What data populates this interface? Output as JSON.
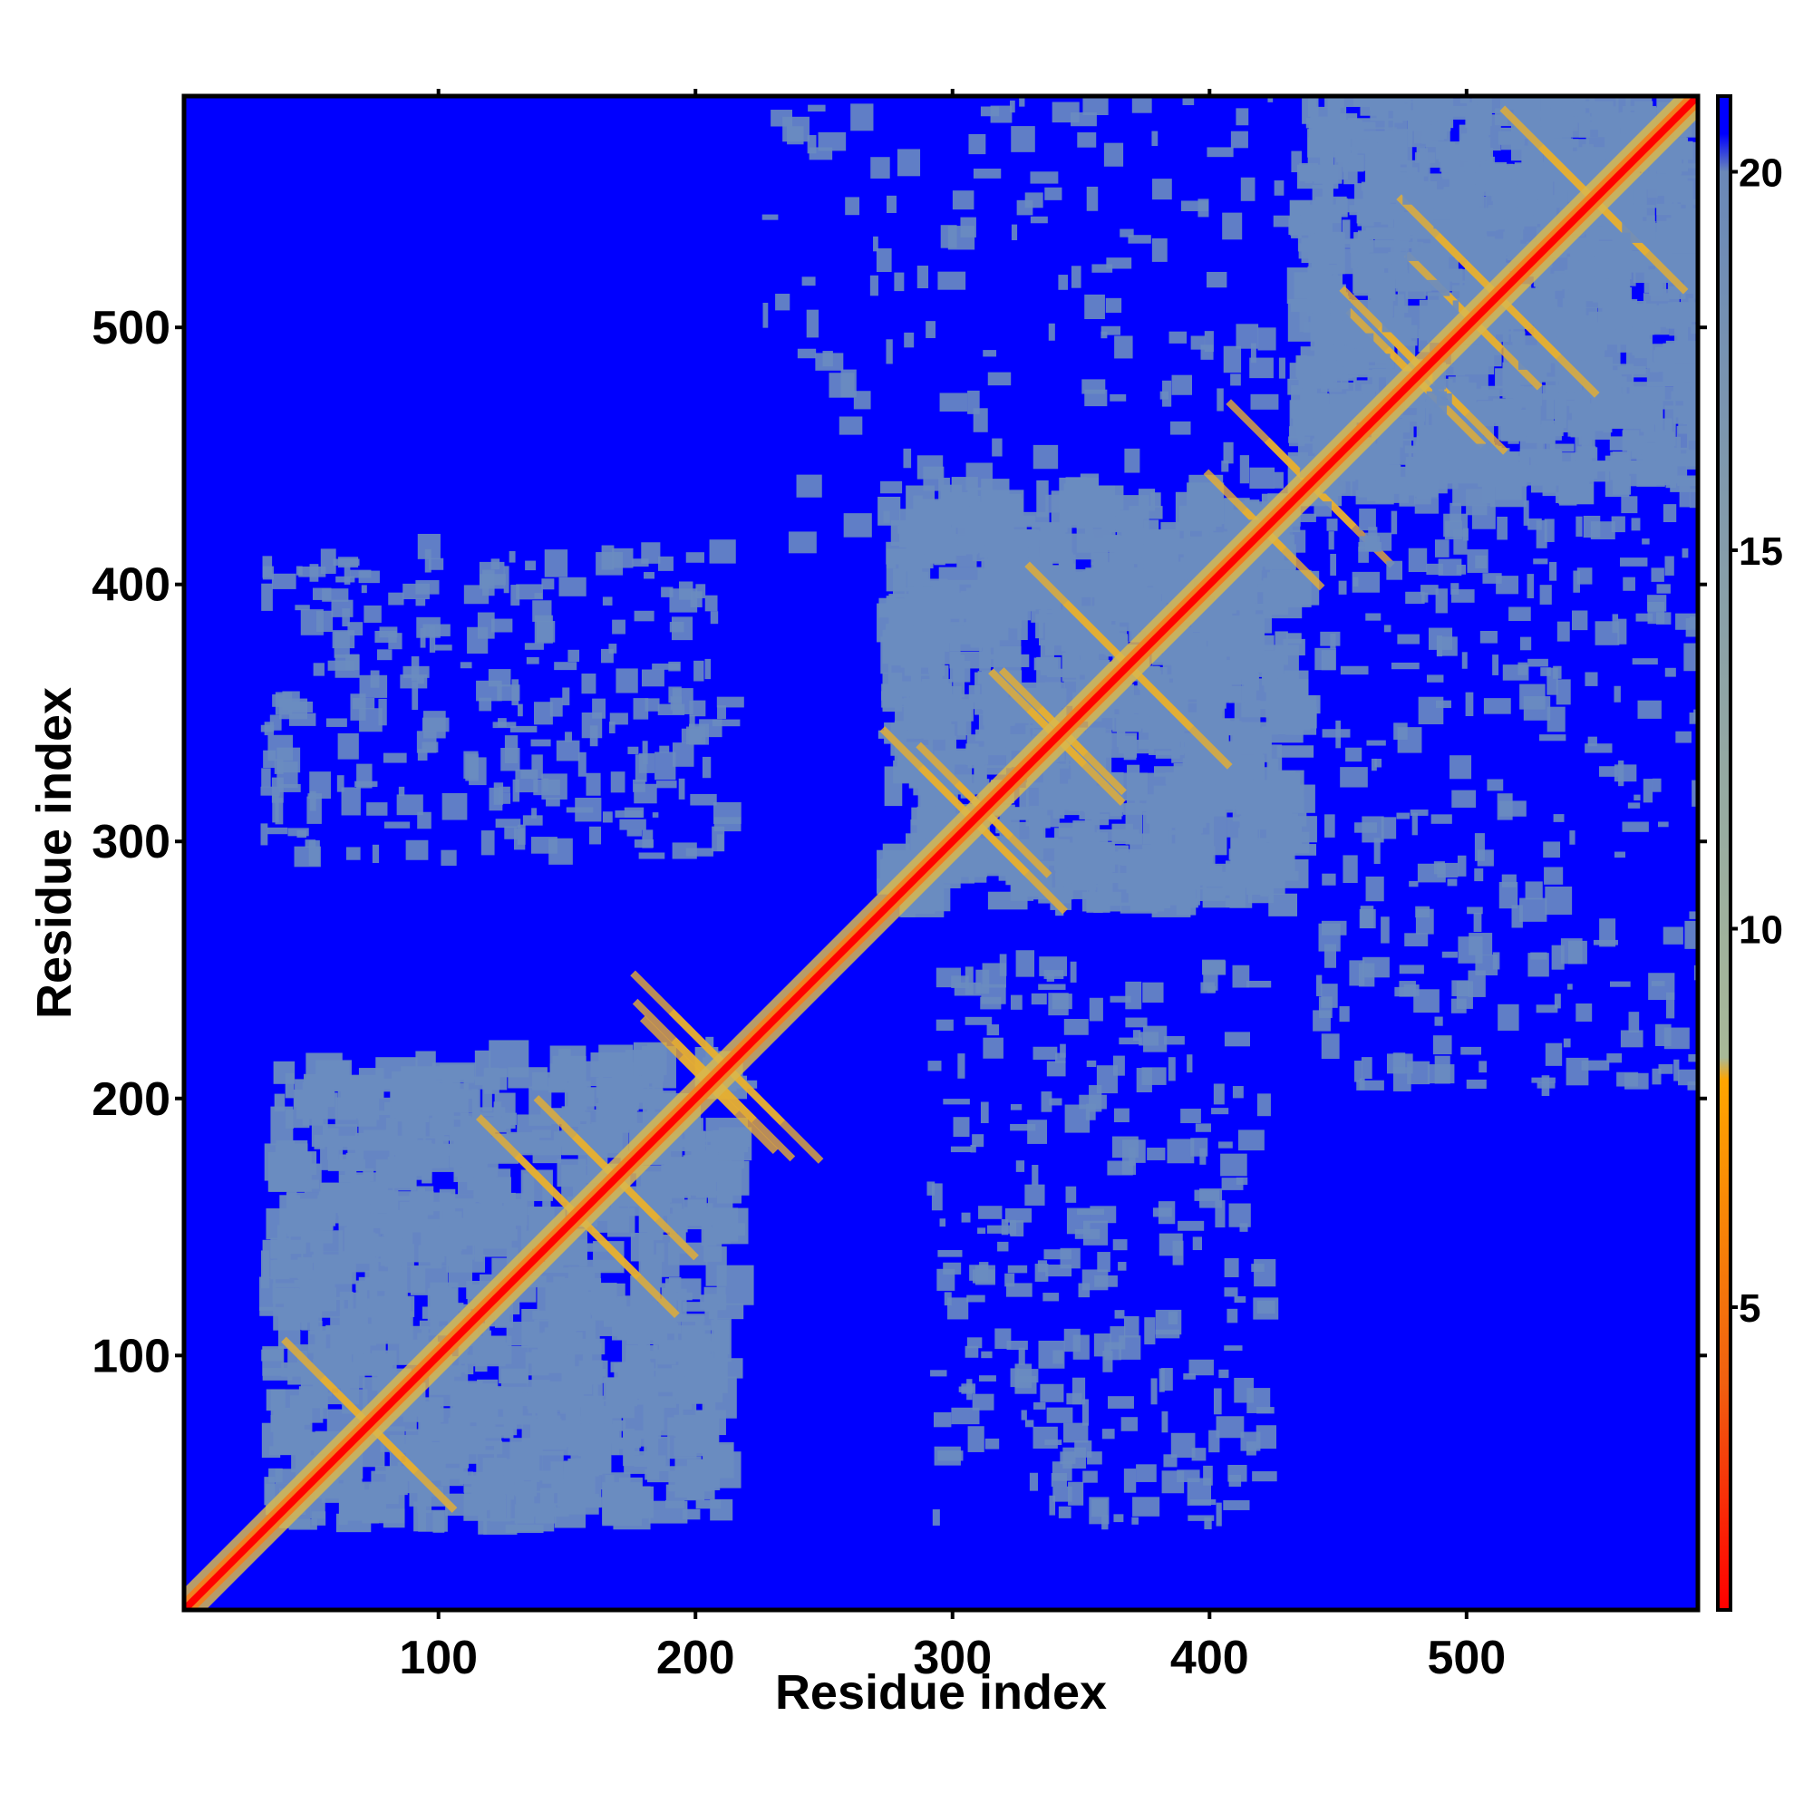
{
  "chart_data": {
    "type": "heatmap",
    "title": "",
    "xlabel": "Residue index",
    "ylabel": "Residue index",
    "xlim": [
      1,
      590
    ],
    "ylim": [
      1,
      590
    ],
    "xticks": [
      100,
      200,
      300,
      400,
      500
    ],
    "yticks": [
      100,
      200,
      300,
      400,
      500
    ],
    "colorbar": {
      "range": [
        1,
        21
      ],
      "ticks": [
        5,
        10,
        15,
        20
      ],
      "stops": [
        {
          "value": 1,
          "color": "#ff0000"
        },
        {
          "value": 4,
          "color": "#f06010"
        },
        {
          "value": 8,
          "color": "#ffa500"
        },
        {
          "value": 8.3,
          "color": "#a8b898"
        },
        {
          "value": 20,
          "color": "#6a88b8"
        },
        {
          "value": 20.5,
          "color": "#0000ff"
        },
        {
          "value": 21,
          "color": "#0000ff"
        }
      ]
    },
    "background_color": "#0000ff",
    "diagonal_color": "#ff0000",
    "contact_region_color": "#6a8cc0",
    "domains": [
      {
        "name": "",
        "start": 30,
        "end": 210
      },
      {
        "name": "",
        "start": 270,
        "end": 430
      },
      {
        "name": "",
        "start": 430,
        "end": 590
      }
    ],
    "off_diagonal_contact_blocks": [
      {
        "x": [
          30,
          210
        ],
        "y": [
          290,
          410
        ]
      },
      {
        "x": [
          290,
          420
        ],
        "y": [
          30,
          250
        ]
      },
      {
        "x": [
          225,
          590
        ],
        "y": [
          410,
          590
        ]
      },
      {
        "x": [
          440,
          590
        ],
        "y": [
          200,
          430
        ]
      }
    ]
  }
}
